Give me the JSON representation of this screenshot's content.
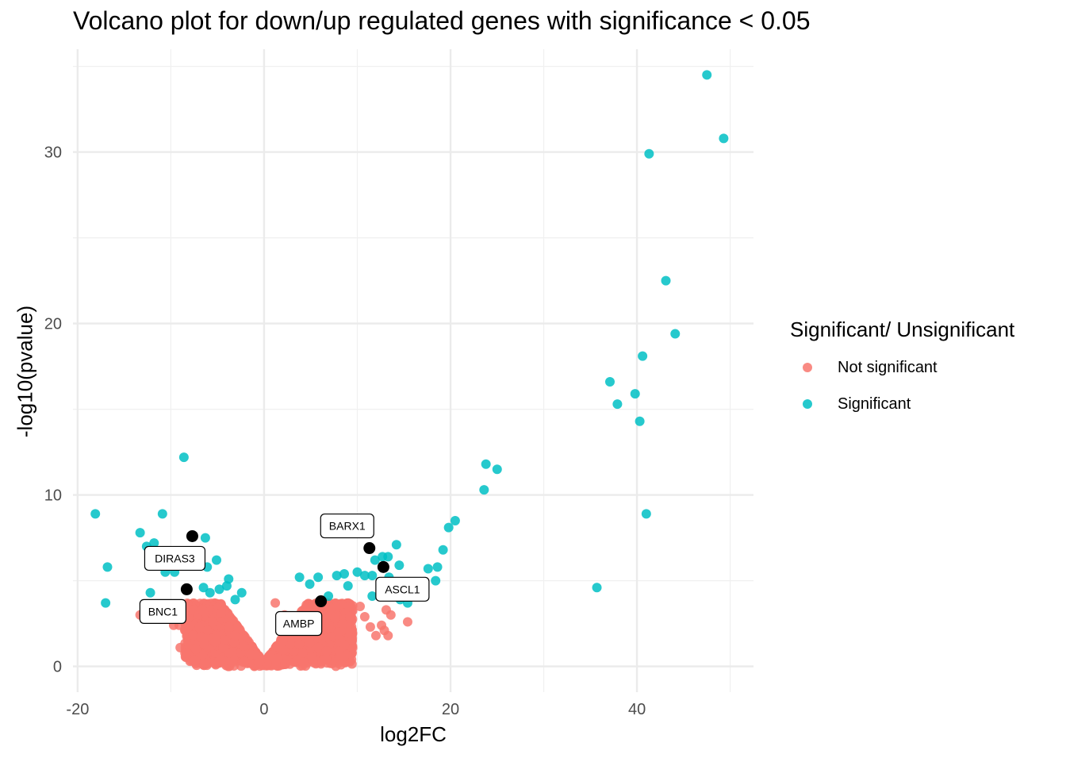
{
  "chart_data": {
    "type": "scatter",
    "title": "Volcano plot for down/up regulated genes with significance < 0.05",
    "xlabel": "log2FC",
    "ylabel": "-log10(pvalue)",
    "xlim": [
      -20.5,
      52.5
    ],
    "ylim": [
      -1.5,
      36
    ],
    "x_ticks": [
      -20,
      0,
      20,
      40
    ],
    "y_ticks": [
      0,
      10,
      20,
      30
    ],
    "grid": true,
    "legend": {
      "title": "Significant/ Unsignificant",
      "position": "right",
      "entries": [
        {
          "label": "Not significant",
          "color": "#F8766D"
        },
        {
          "label": "Significant",
          "color": "#00BFC4"
        }
      ]
    },
    "series": [
      {
        "name": "Not significant",
        "color": "#F8766D",
        "bulk_cloud": "dense cloud of points with |log2FC| up to ~8 and -log10(pvalue) up to ~3.7",
        "points": [
          [
            -13.3,
            3.0
          ],
          [
            -12.9,
            3.0
          ],
          [
            -9.7,
            2.4
          ],
          [
            -9.1,
            2.4
          ],
          [
            -9.0,
            1.1
          ],
          [
            -8.5,
            2.1
          ],
          [
            -8.3,
            0.8
          ],
          [
            -8.9,
            3.2
          ],
          [
            -8.1,
            3.5
          ],
          [
            -7.6,
            3.3
          ],
          [
            -7.0,
            3.0
          ],
          [
            -6.5,
            3.2
          ],
          [
            -6.8,
            1.7
          ],
          [
            -7.3,
            1.0
          ],
          [
            -5.5,
            2.6
          ],
          [
            -4.6,
            3.1
          ],
          [
            -3.8,
            2.3
          ],
          [
            -3.1,
            1.8
          ],
          [
            -2.2,
            1.2
          ],
          [
            -1.4,
            0.7
          ],
          [
            -0.6,
            0.2
          ],
          [
            1.2,
            3.7
          ],
          [
            2.2,
            3.0
          ],
          [
            3.1,
            2.2
          ],
          [
            4.0,
            1.8
          ],
          [
            4.9,
            1.4
          ],
          [
            5.8,
            1.1
          ],
          [
            6.7,
            0.9
          ],
          [
            8.0,
            2.0
          ],
          [
            9.2,
            2.9
          ],
          [
            10.3,
            3.5
          ],
          [
            10.8,
            2.9
          ],
          [
            11.4,
            2.3
          ],
          [
            12.0,
            1.8
          ],
          [
            12.6,
            2.4
          ],
          [
            13.1,
            3.3
          ],
          [
            13.6,
            3.0
          ],
          [
            12.9,
            2.1
          ],
          [
            13.3,
            1.8
          ],
          [
            15.4,
            2.6
          ]
        ]
      },
      {
        "name": "Significant",
        "color": "#00BFC4",
        "points": [
          [
            -18.1,
            8.9
          ],
          [
            -16.8,
            5.8
          ],
          [
            -17.0,
            3.7
          ],
          [
            -13.3,
            7.8
          ],
          [
            -12.6,
            7.0
          ],
          [
            -11.8,
            7.2
          ],
          [
            -12.2,
            4.3
          ],
          [
            -11.4,
            6.5
          ],
          [
            -10.9,
            8.9
          ],
          [
            -10.4,
            6.2
          ],
          [
            -10.6,
            5.5
          ],
          [
            -9.6,
            5.5
          ],
          [
            -8.6,
            12.2
          ],
          [
            -7.0,
            6.0
          ],
          [
            -6.3,
            7.5
          ],
          [
            -6.1,
            5.8
          ],
          [
            -5.1,
            6.2
          ],
          [
            -3.8,
            5.1
          ],
          [
            -2.4,
            4.3
          ],
          [
            -6.5,
            4.6
          ],
          [
            -5.8,
            4.3
          ],
          [
            -4.8,
            4.5
          ],
          [
            -4.0,
            4.7
          ],
          [
            -3.1,
            3.9
          ],
          [
            3.8,
            5.2
          ],
          [
            4.9,
            4.8
          ],
          [
            5.8,
            5.2
          ],
          [
            6.9,
            4.1
          ],
          [
            7.8,
            5.3
          ],
          [
            8.6,
            5.4
          ],
          [
            9.0,
            4.7
          ],
          [
            10.0,
            5.5
          ],
          [
            10.8,
            5.3
          ],
          [
            11.6,
            5.3
          ],
          [
            11.9,
            6.2
          ],
          [
            12.7,
            6.4
          ],
          [
            13.3,
            6.4
          ],
          [
            14.2,
            7.1
          ],
          [
            14.5,
            5.9
          ],
          [
            13.4,
            5.2
          ],
          [
            12.7,
            4.3
          ],
          [
            11.6,
            4.1
          ],
          [
            15.4,
            3.7
          ],
          [
            14.6,
            3.9
          ],
          [
            17.6,
            5.7
          ],
          [
            18.6,
            5.8
          ],
          [
            18.4,
            5.0
          ],
          [
            19.2,
            6.8
          ],
          [
            19.8,
            8.1
          ],
          [
            20.5,
            8.5
          ],
          [
            23.6,
            10.3
          ],
          [
            23.8,
            11.8
          ],
          [
            25.0,
            11.5
          ],
          [
            35.7,
            4.6
          ],
          [
            37.1,
            16.6
          ],
          [
            37.9,
            15.3
          ],
          [
            39.8,
            15.9
          ],
          [
            40.3,
            14.3
          ],
          [
            40.6,
            18.1
          ],
          [
            41.0,
            8.9
          ],
          [
            41.3,
            29.9
          ],
          [
            43.1,
            22.5
          ],
          [
            44.1,
            19.4
          ],
          [
            47.5,
            34.5
          ],
          [
            49.3,
            30.8
          ]
        ]
      }
    ],
    "highlighted_genes": [
      {
        "label": "BARX1",
        "x": 11.3,
        "y": 6.9
      },
      {
        "label": "ASCL1",
        "x": 12.8,
        "y": 5.8
      },
      {
        "label": "DIRAS3",
        "x": -7.7,
        "y": 7.6
      },
      {
        "label": "BNC1",
        "x": -8.3,
        "y": 4.5
      },
      {
        "label": "AMBP",
        "x": 6.1,
        "y": 3.8
      }
    ]
  }
}
